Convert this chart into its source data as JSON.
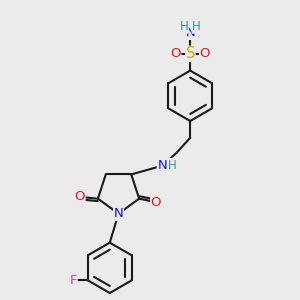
{
  "bg_color": "#ebebeb",
  "bond_color": "#1a1a1a",
  "bond_width": 1.5,
  "atom_colors": {
    "C": "#1a1a1a",
    "N": "#1010ee",
    "O": "#ee1010",
    "S": "#ccaa00",
    "F": "#cc44bb",
    "H": "#339999"
  },
  "font_size_atom": 9.5,
  "font_size_H": 8.5
}
